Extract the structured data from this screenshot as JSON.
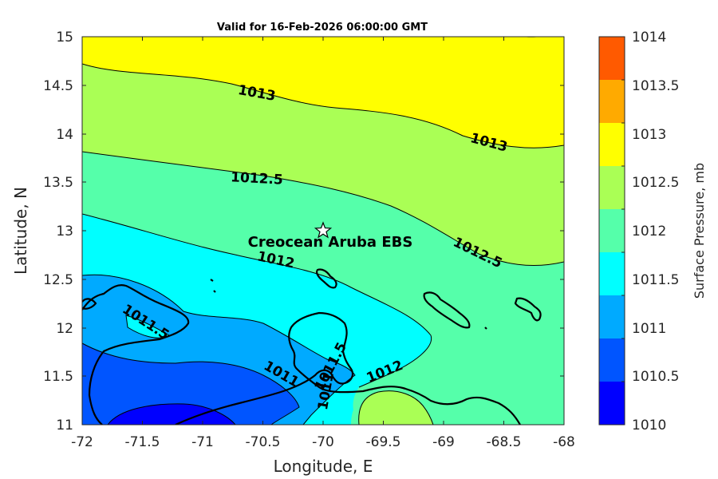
{
  "plot": {
    "title": "Valid for 16-Feb-2026 06:00:00 GMT",
    "xlabel": "Longitude, E",
    "ylabel": "Latitude, N",
    "xticks": [
      "-72",
      "-71.5",
      "-71",
      "-70.5",
      "-70",
      "-69.5",
      "-69",
      "-68.5",
      "-68"
    ],
    "yticks": [
      "15",
      "14.5",
      "14",
      "13.5",
      "13",
      "12.5",
      "12",
      "11.5",
      "11"
    ]
  },
  "colorbar": {
    "title": "Surface Pressure, mb",
    "levels": [
      "1014",
      "1013.5",
      "1013",
      "1012.5",
      "1012",
      "1011.5",
      "1011",
      "1010.5",
      "1010"
    ],
    "colors": [
      "#ff5a00",
      "#ffaa00",
      "#ffff00",
      "#aaff55",
      "#55ffaa",
      "#00ffff",
      "#00aaff",
      "#0055ff",
      "#0000ff"
    ]
  },
  "site": {
    "name": "Creocean Aruba EBS",
    "lon": -70.0,
    "lat": 13.0
  },
  "contour_labels": {
    "c1013_a": "1013",
    "c1013_b": "1013",
    "c1012_5_a": "1012.5",
    "c1012_5_b": "1012.5",
    "c1012_a": "1012",
    "c1012_b": "1012",
    "c1011_5_a": "1011.5",
    "c1011_5_b": "1011.5",
    "c1011_a": "1011",
    "c1011_b": "1011"
  },
  "chart_data": {
    "type": "contour",
    "title": "Valid for 16-Feb-2026 06:00:00 GMT",
    "xlabel": "Longitude, E",
    "ylabel": "Latitude, N",
    "xlim": [
      -72,
      -68
    ],
    "ylim": [
      11,
      15
    ],
    "variable": "Surface Pressure, mb",
    "color_range": [
      1010,
      1014
    ],
    "contour_levels": [
      1010.5,
      1011,
      1011.5,
      1012,
      1012.5,
      1013,
      1013.5
    ],
    "labeled_contours": [
      "1013",
      "1012.5",
      "1012",
      "1011.5",
      "1011"
    ],
    "marker": {
      "name": "Creocean Aruba EBS",
      "lon": -70.0,
      "lat": 13.0,
      "symbol": "star"
    }
  }
}
